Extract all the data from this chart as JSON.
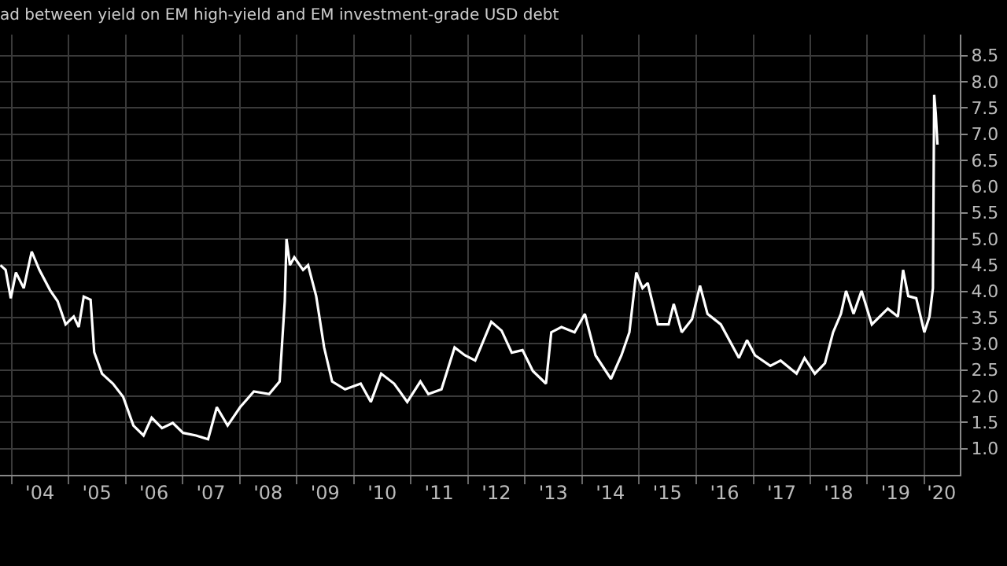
{
  "chart_data": {
    "type": "line",
    "title": "ad between yield on EM high-yield and EM investment-grade USD debt",
    "series": [
      {
        "color": "#ffffff",
        "x": [
          "2003-10-23",
          "2003-11-25",
          "2003-12-28",
          "2004-01-30",
          "2004-03-20",
          "2004-05-10",
          "2004-06-28",
          "2004-09-05",
          "2004-10-23",
          "2004-12-13",
          "2005-02-03",
          "2005-03-07",
          "2005-04-08",
          "2005-05-22",
          "2005-06-14",
          "2005-08-03",
          "2005-10-12",
          "2005-12-16",
          "2006-02-20",
          "2006-04-26",
          "2006-06-17",
          "2006-08-22",
          "2006-10-30",
          "2007-01-04",
          "2007-03-28",
          "2007-06-13",
          "2007-08-08",
          "2007-10-16",
          "2008-01-04",
          "2008-04-01",
          "2008-07-08",
          "2008-09-13",
          "2008-10-16",
          "2008-10-27",
          "2008-11-18",
          "2008-12-16",
          "2009-02-10",
          "2009-03-14",
          "2009-05-05",
          "2009-06-25",
          "2009-08-15",
          "2009-11-06",
          "2010-02-14",
          "2010-04-20",
          "2010-06-25",
          "2010-09-16",
          "2010-12-09",
          "2011-03-03",
          "2011-04-23",
          "2011-07-16",
          "2011-10-08",
          "2011-12-13",
          "2012-02-17",
          "2012-05-30",
          "2012-08-04",
          "2012-10-08",
          "2012-12-16",
          "2013-02-20",
          "2013-05-15",
          "2013-06-18",
          "2013-08-22",
          "2013-11-14",
          "2014-01-19",
          "2014-03-28",
          "2014-07-05",
          "2014-09-10",
          "2014-10-31",
          "2014-12-14",
          "2015-01-23",
          "2015-02-25",
          "2015-05-01",
          "2015-07-09",
          "2015-08-11",
          "2015-10-01",
          "2015-12-06",
          "2016-01-26",
          "2016-03-14",
          "2016-06-07",
          "2016-10-01",
          "2016-11-22",
          "2017-01-12",
          "2017-04-20",
          "2017-06-25",
          "2017-10-05",
          "2017-11-25",
          "2018-01-30",
          "2018-04-05",
          "2018-05-27",
          "2018-07-16",
          "2018-08-18",
          "2018-10-05",
          "2018-11-25",
          "2019-01-30",
          "2019-05-12",
          "2019-07-16",
          "2019-08-18",
          "2019-09-20",
          "2019-11-10",
          "2020-01-01",
          "2020-02-03",
          "2020-02-25",
          "2020-03-04",
          "2020-03-14",
          "2020-03-25"
        ],
        "values": [
          4.5,
          4.41,
          3.87,
          4.36,
          4.06,
          4.76,
          4.41,
          4.02,
          3.81,
          3.37,
          3.52,
          3.32,
          3.9,
          3.84,
          2.84,
          2.43,
          2.24,
          1.99,
          1.44,
          1.25,
          1.59,
          1.39,
          1.49,
          1.3,
          1.25,
          1.18,
          1.79,
          1.44,
          1.79,
          2.09,
          2.04,
          2.28,
          3.81,
          5.0,
          4.5,
          4.65,
          4.41,
          4.5,
          3.91,
          2.93,
          2.28,
          2.13,
          2.24,
          1.89,
          2.43,
          2.24,
          1.89,
          2.28,
          2.04,
          2.13,
          2.93,
          2.78,
          2.68,
          3.42,
          3.25,
          2.83,
          2.88,
          2.48,
          2.24,
          3.22,
          3.32,
          3.22,
          3.57,
          2.78,
          2.33,
          2.78,
          3.22,
          4.36,
          4.06,
          4.16,
          3.37,
          3.37,
          3.76,
          3.22,
          3.47,
          4.11,
          3.57,
          3.37,
          2.73,
          3.07,
          2.78,
          2.58,
          2.68,
          2.43,
          2.73,
          2.43,
          2.63,
          3.22,
          3.57,
          4.01,
          3.57,
          4.01,
          3.37,
          3.67,
          3.52,
          4.41,
          3.91,
          3.87,
          3.22,
          3.52,
          4.06,
          7.75,
          7.4,
          6.8
        ]
      }
    ],
    "xlim": [
      "2003-10-20",
      "2020-08-15"
    ],
    "xticks": [
      {
        "value": "2004-01-01",
        "label": null
      },
      {
        "value": "2005-01-01",
        "label": null
      },
      {
        "value": "2006-01-01",
        "label": null
      },
      {
        "value": "2007-01-01",
        "label": null
      },
      {
        "value": "2008-01-01",
        "label": null
      },
      {
        "value": "2009-01-01",
        "label": null
      },
      {
        "value": "2010-01-01",
        "label": null
      },
      {
        "value": "2011-01-01",
        "label": null
      },
      {
        "value": "2012-01-01",
        "label": null
      },
      {
        "value": "2013-01-01",
        "label": null
      },
      {
        "value": "2014-01-01",
        "label": null
      },
      {
        "value": "2015-01-01",
        "label": null
      },
      {
        "value": "2016-01-01",
        "label": null
      },
      {
        "value": "2017-01-01",
        "label": null
      },
      {
        "value": "2018-01-01",
        "label": null
      },
      {
        "value": "2019-01-01",
        "label": null
      },
      {
        "value": "2020-01-01",
        "label": null
      },
      {
        "value": "2004-07-01",
        "label": "'04"
      },
      {
        "value": "2005-07-01",
        "label": "'05"
      },
      {
        "value": "2006-07-01",
        "label": "'06"
      },
      {
        "value": "2007-07-01",
        "label": "'07"
      },
      {
        "value": "2008-07-01",
        "label": "'08"
      },
      {
        "value": "2009-07-01",
        "label": "'09"
      },
      {
        "value": "2010-07-01",
        "label": "'10"
      },
      {
        "value": "2011-07-01",
        "label": "'11"
      },
      {
        "value": "2012-07-01",
        "label": "'12"
      },
      {
        "value": "2013-07-01",
        "label": "'13"
      },
      {
        "value": "2014-07-01",
        "label": "'14"
      },
      {
        "value": "2015-07-01",
        "label": "'15"
      },
      {
        "value": "2016-07-01",
        "label": "'16"
      },
      {
        "value": "2017-07-01",
        "label": "'17"
      },
      {
        "value": "2018-07-01",
        "label": "'18"
      },
      {
        "value": "2019-07-01",
        "label": "'19"
      },
      {
        "value": "2020-04-20",
        "label": "'20"
      }
    ],
    "ylim": [
      0.5,
      8.9
    ],
    "yticks": [
      {
        "value": 1.0,
        "label": "1.0"
      },
      {
        "value": 1.5,
        "label": "1.5"
      },
      {
        "value": 2.0,
        "label": "2.0"
      },
      {
        "value": 2.5,
        "label": "2.5"
      },
      {
        "value": 3.0,
        "label": "3.0"
      },
      {
        "value": 3.5,
        "label": "3.5"
      },
      {
        "value": 4.0,
        "label": "4.0"
      },
      {
        "value": 4.5,
        "label": "4.5"
      },
      {
        "value": 5.0,
        "label": "5.0"
      },
      {
        "value": 5.5,
        "label": "5.5"
      },
      {
        "value": 6.0,
        "label": "6.0"
      },
      {
        "value": 6.5,
        "label": "6.5"
      },
      {
        "value": 7.0,
        "label": "7.0"
      },
      {
        "value": 7.5,
        "label": "7.5"
      },
      {
        "value": 8.0,
        "label": "8.0"
      },
      {
        "value": 8.5,
        "label": "8.5"
      }
    ],
    "grid": true,
    "marker": "none",
    "line_style": "solid"
  }
}
